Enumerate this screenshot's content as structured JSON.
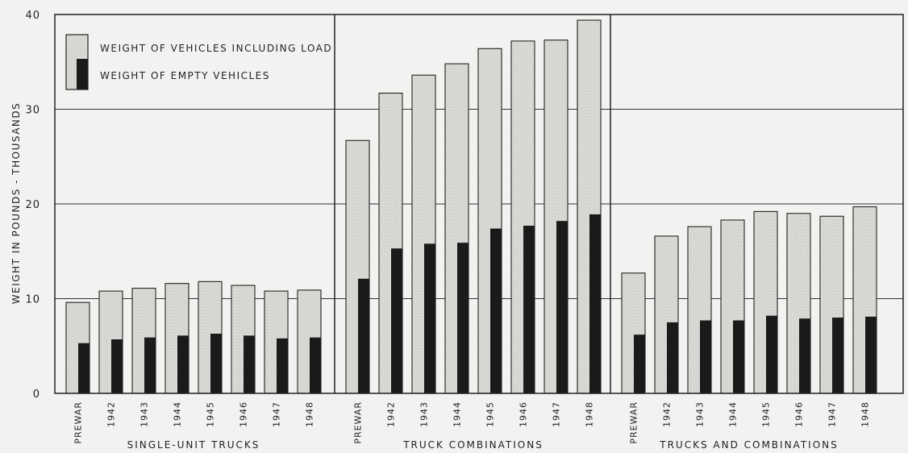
{
  "colors": {
    "background": "#f2f2f0",
    "loaded_fill": "#dcdcd8",
    "empty_fill": "#1a1a1a",
    "axis": "#222222",
    "grid": "#333333"
  },
  "chart_data": {
    "type": "bar",
    "title": "",
    "ylabel": "WEIGHT IN POUNDS - THOUSANDS",
    "ylim": [
      0,
      40
    ],
    "yticks": [
      0,
      10,
      20,
      30,
      40
    ],
    "grid": true,
    "legend_position": "top-left",
    "legend": [
      {
        "name": "WEIGHT OF VEHICLES INCLUDING LOAD",
        "key": "loaded"
      },
      {
        "name": "WEIGHT OF EMPTY VEHICLES",
        "key": "empty"
      }
    ],
    "categories": [
      "PREWAR",
      "1942",
      "1943",
      "1944",
      "1945",
      "1946",
      "1947",
      "1948"
    ],
    "groups": [
      {
        "label": "SINGLE-UNIT TRUCKS",
        "series": [
          {
            "name": "WEIGHT OF VEHICLES INCLUDING LOAD",
            "values": [
              9.6,
              10.8,
              11.1,
              11.6,
              11.8,
              11.4,
              10.8,
              10.9
            ]
          },
          {
            "name": "WEIGHT OF EMPTY VEHICLES",
            "values": [
              5.3,
              5.7,
              5.9,
              6.1,
              6.3,
              6.1,
              5.8,
              5.9
            ]
          }
        ]
      },
      {
        "label": "TRUCK COMBINATIONS",
        "series": [
          {
            "name": "WEIGHT OF VEHICLES INCLUDING LOAD",
            "values": [
              26.7,
              31.7,
              33.6,
              34.8,
              36.4,
              37.2,
              37.3,
              39.4
            ]
          },
          {
            "name": "WEIGHT OF EMPTY VEHICLES",
            "values": [
              12.1,
              15.3,
              15.8,
              15.9,
              17.4,
              17.7,
              18.2,
              18.9
            ]
          }
        ]
      },
      {
        "label": "TRUCKS AND COMBINATIONS",
        "series": [
          {
            "name": "WEIGHT OF VEHICLES INCLUDING LOAD",
            "values": [
              12.7,
              16.6,
              17.6,
              18.3,
              19.2,
              19.0,
              18.7,
              19.7
            ]
          },
          {
            "name": "WEIGHT OF EMPTY VEHICLES",
            "values": [
              6.2,
              7.5,
              7.7,
              7.7,
              8.2,
              7.9,
              8.0,
              8.1
            ]
          }
        ]
      }
    ]
  }
}
